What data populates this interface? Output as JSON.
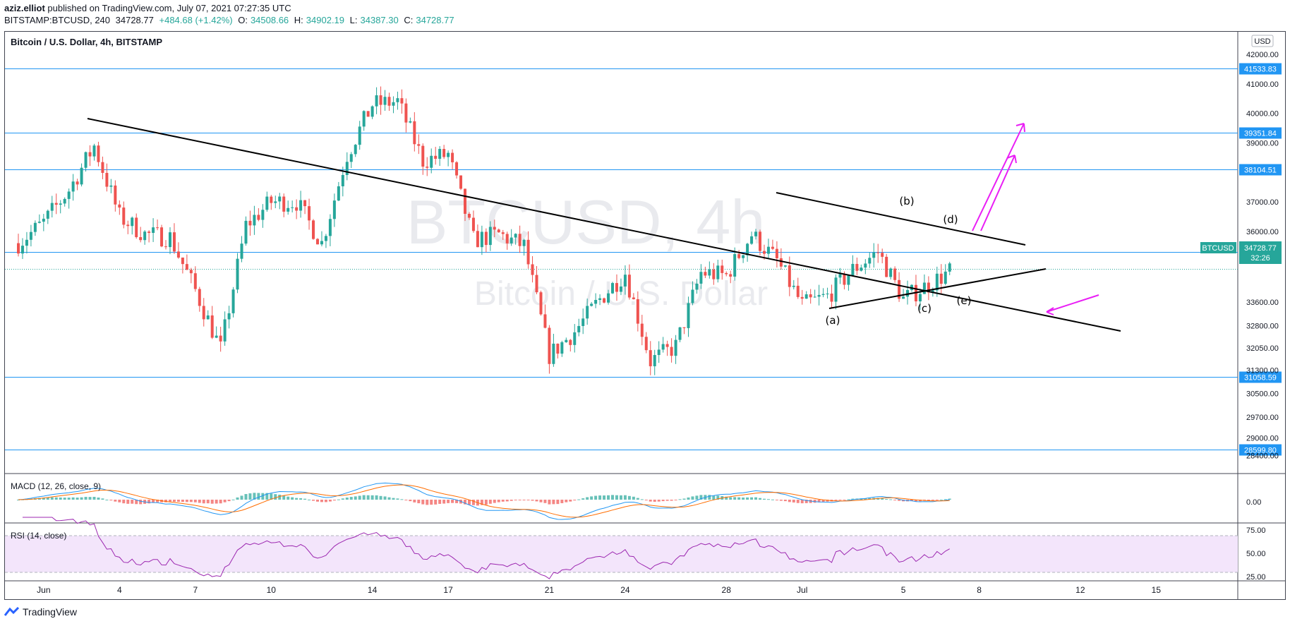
{
  "header": {
    "publisher": "aziz.elliot",
    "published_text": " published on TradingView.com, July 07, 2021 07:27:35 UTC",
    "symbol_line": "BITSTAMP:BTCUSD, 240",
    "last": "34728.77",
    "change": "+484.68 (+1.42%)",
    "o_label": "O:",
    "o": "34508.66",
    "h_label": "H:",
    "h": "34902.19",
    "l_label": "L:",
    "l": "34387.30",
    "c_label": "C:",
    "c": "34728.77"
  },
  "chart_title": "Bitcoin / U.S. Dollar, 4h, BITSTAMP",
  "watermark": {
    "symbol": "BTCUSD, 4h",
    "name": "Bitcoin / U.S. Dollar"
  },
  "currency": "USD",
  "price_ticks": [
    "42000.00",
    "41000.00",
    "40000.00",
    "39000.00",
    "37000.00",
    "36000.00",
    "33600.00",
    "32800.00",
    "32050.00",
    "31300.00",
    "30500.00",
    "29700.00",
    "29000.00",
    "28400.00"
  ],
  "horizontal_levels": [
    "41533.83",
    "39351.84",
    "38104.51",
    "35294.43",
    "31058.59",
    "28599.80"
  ],
  "price_tag": {
    "symbol": "BTCUSD",
    "value": "34728.77",
    "countdown": "32:26"
  },
  "x_ticks": [
    "Jun",
    "4",
    "7",
    "10",
    "14",
    "17",
    "21",
    "24",
    "28",
    "Jul",
    "5",
    "8",
    "12",
    "15"
  ],
  "wave_labels": [
    "(a)",
    "(b)",
    "(c)",
    "(d)",
    "(e)"
  ],
  "macd": {
    "label": "MACD (12, 26, close, 9)",
    "tick": "0.00"
  },
  "rsi": {
    "label": "RSI (14, close)",
    "ticks": [
      "75.00",
      "50.00",
      "25.00"
    ]
  },
  "footer": {
    "brand": "TradingView"
  },
  "colors": {
    "up": "#26a69a",
    "down": "#ef5350",
    "level": "#2196f3",
    "arrow": "#e91ef5",
    "rsi": "#9c27b0",
    "rsi_band": "#f3e5fb",
    "macd_line": "#2196f3",
    "signal_line": "#ff6d00"
  },
  "chart_data": {
    "type": "candlestick",
    "title": "Bitcoin / U.S. Dollar, 4h, BITSTAMP",
    "x_range": [
      "2021-05-31",
      "2021-07-17"
    ],
    "ylim": [
      28100,
      42600
    ],
    "ohlc_path": [
      [
        "2021-05-31",
        35600
      ],
      [
        "2021-06-01",
        36300
      ],
      [
        "2021-06-02",
        37400
      ],
      [
        "2021-06-03",
        38900
      ],
      [
        "2021-06-04",
        36500
      ],
      [
        "2021-06-05",
        35900
      ],
      [
        "2021-06-06",
        35800
      ],
      [
        "2021-06-07",
        34000
      ],
      [
        "2021-06-08",
        32000
      ],
      [
        "2021-06-09",
        36200
      ],
      [
        "2021-06-10",
        37000
      ],
      [
        "2021-06-11",
        37000
      ],
      [
        "2021-06-12",
        35600
      ],
      [
        "2021-06-13",
        38600
      ],
      [
        "2021-06-14",
        40300
      ],
      [
        "2021-06-15",
        40400
      ],
      [
        "2021-06-16",
        38400
      ],
      [
        "2021-06-17",
        38600
      ],
      [
        "2021-06-18",
        35700
      ],
      [
        "2021-06-19",
        35900
      ],
      [
        "2021-06-20",
        35500
      ],
      [
        "2021-06-21",
        31800
      ],
      [
        "2021-06-22",
        32600
      ],
      [
        "2021-06-23",
        33700
      ],
      [
        "2021-06-24",
        34600
      ],
      [
        "2021-06-25",
        31600
      ],
      [
        "2021-06-26",
        32100
      ],
      [
        "2021-06-27",
        34600
      ],
      [
        "2021-06-28",
        34500
      ],
      [
        "2021-06-29",
        35900
      ],
      [
        "2021-06-30",
        35000
      ],
      [
        "2021-07-01",
        33500
      ],
      [
        "2021-07-02",
        33800
      ],
      [
        "2021-07-03",
        34700
      ],
      [
        "2021-07-04",
        35300
      ],
      [
        "2021-07-05",
        33700
      ],
      [
        "2021-07-06",
        34200
      ],
      [
        "2021-07-07",
        34728.77
      ]
    ],
    "horizontal_levels": [
      41533.83,
      39351.84,
      38104.51,
      35294.43,
      31058.59,
      28599.8
    ],
    "last_price": 34728.77,
    "rsi_range": [
      25,
      75
    ],
    "macd_zero": 0
  }
}
